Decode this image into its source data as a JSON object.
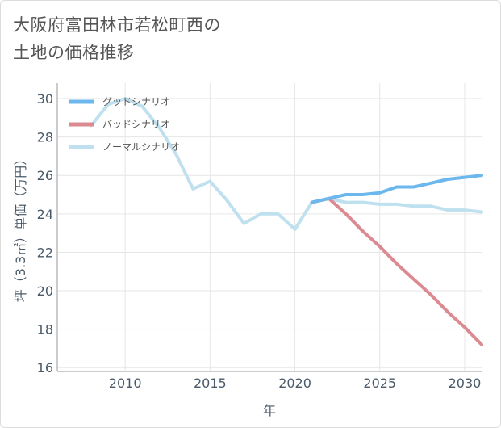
{
  "title_line1": "大阪府富田林市若松町西の",
  "title_line2": "土地の価格推移",
  "chart_data": {
    "type": "line",
    "title": "大阪府富田林市若松町西の土地の価格推移",
    "xlabel": "年",
    "ylabel": "坪（3.3㎡）単価（万円）",
    "xlim": [
      2006,
      2031
    ],
    "ylim": [
      15.8,
      30.8
    ],
    "xticks": [
      2010,
      2015,
      2020,
      2025,
      2030
    ],
    "yticks": [
      16,
      18,
      20,
      22,
      24,
      26,
      28,
      30
    ],
    "grid": true,
    "legend_position": "top-left",
    "series": [
      {
        "name": "グッドシナリオ",
        "color": "#6cb8ee",
        "x": [
          2021,
          2022,
          2023,
          2024,
          2025,
          2026,
          2027,
          2028,
          2029,
          2030,
          2031
        ],
        "y": [
          24.6,
          24.8,
          25.0,
          25.0,
          25.1,
          25.4,
          25.4,
          25.6,
          25.8,
          25.9,
          26.0
        ]
      },
      {
        "name": "バッドシナリオ",
        "color": "#dc8a91",
        "x": [
          2021,
          2022,
          2023,
          2024,
          2025,
          2026,
          2027,
          2028,
          2029,
          2030,
          2031
        ],
        "y": [
          24.6,
          24.8,
          24.0,
          23.1,
          22.3,
          21.4,
          20.6,
          19.8,
          18.9,
          18.1,
          17.2
        ]
      },
      {
        "name": "ノーマルシナリオ",
        "color": "#bfe0ee",
        "x": [
          2008,
          2009,
          2010,
          2011,
          2012,
          2013,
          2014,
          2015,
          2016,
          2017,
          2018,
          2019,
          2020,
          2021,
          2022,
          2023,
          2024,
          2025,
          2026,
          2027,
          2028,
          2029,
          2030,
          2031
        ],
        "y": [
          28.6,
          29.7,
          30.0,
          29.6,
          28.5,
          27.1,
          25.3,
          25.7,
          24.7,
          23.5,
          24.0,
          24.0,
          23.2,
          24.6,
          24.8,
          24.6,
          24.6,
          24.5,
          24.5,
          24.4,
          24.4,
          24.2,
          24.2,
          24.1
        ]
      }
    ]
  }
}
